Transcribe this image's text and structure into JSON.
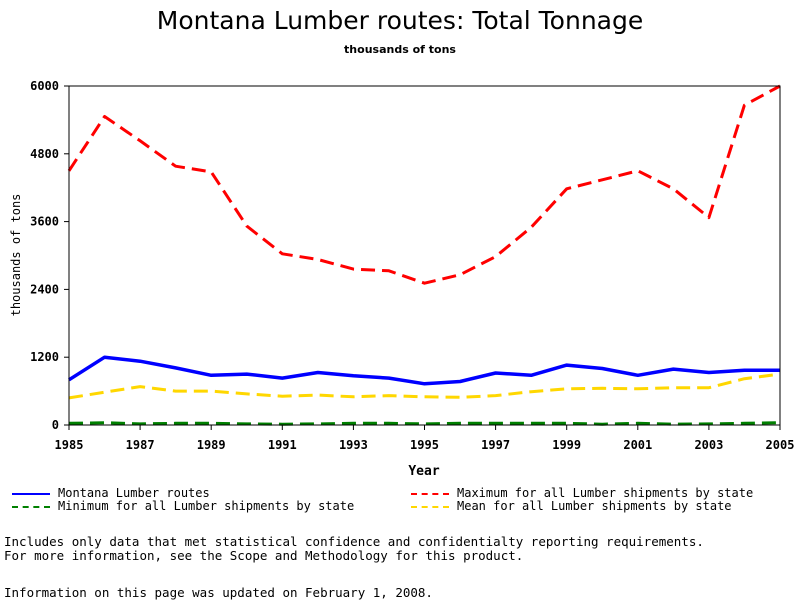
{
  "chart_data": {
    "type": "line",
    "title": "Montana Lumber routes: Total Tonnage",
    "subtitle": "thousands of tons",
    "xlabel": "Year",
    "ylabel": "thousands of tons",
    "xlim": [
      1985,
      2005
    ],
    "ylim": [
      0,
      6000
    ],
    "x_ticks": [
      "1985",
      "1987",
      "1989",
      "1991",
      "1993",
      "1995",
      "1997",
      "1999",
      "2001",
      "2003",
      "2005"
    ],
    "y_ticks": [
      "0",
      "1200",
      "2400",
      "3600",
      "4800",
      "6000"
    ],
    "grid": false,
    "x": [
      1985,
      1986,
      1987,
      1988,
      1989,
      1990,
      1991,
      1992,
      1993,
      1994,
      1995,
      1996,
      1997,
      1998,
      1999,
      2000,
      2001,
      2002,
      2003,
      2004,
      2005
    ],
    "series": [
      {
        "name": "Montana Lumber routes",
        "color": "#0000ff",
        "style": "solid",
        "values": [
          800,
          1200,
          1130,
          1010,
          880,
          900,
          830,
          930,
          870,
          830,
          730,
          770,
          920,
          880,
          1060,
          1000,
          880,
          990,
          930,
          970,
          970
        ]
      },
      {
        "name": "Maximum for all Lumber shipments by state",
        "color": "#ff0000",
        "style": "dashed",
        "values": [
          4500,
          5460,
          5030,
          4580,
          4480,
          3520,
          3030,
          2930,
          2760,
          2730,
          2510,
          2660,
          2980,
          3500,
          4180,
          4340,
          4500,
          4180,
          3670,
          5660,
          6000
        ]
      },
      {
        "name": "Minimum for all Lumber shipments by state",
        "color": "#008000",
        "style": "dashed",
        "values": [
          30,
          40,
          20,
          30,
          30,
          20,
          15,
          20,
          30,
          30,
          20,
          30,
          30,
          30,
          30,
          15,
          30,
          15,
          20,
          30,
          40
        ]
      },
      {
        "name": "Mean for all Lumber shipments by state",
        "color": "#ffd700",
        "style": "dashed",
        "values": [
          480,
          580,
          680,
          600,
          600,
          550,
          510,
          530,
          500,
          520,
          500,
          490,
          520,
          590,
          640,
          650,
          640,
          660,
          660,
          820,
          900
        ]
      }
    ],
    "legend_placement": "bottom"
  },
  "notes": {
    "line1": "Includes only data that met statistical confidence and confidentialty reporting requirements.",
    "line2": "For more information, see the Scope and Methodology for this product.",
    "updated": "Information on this page was updated on February 1, 2008."
  }
}
